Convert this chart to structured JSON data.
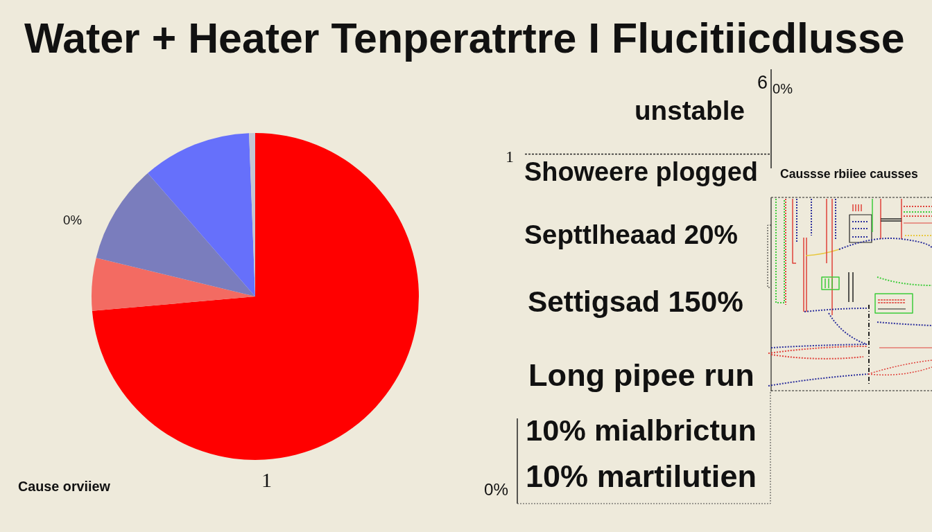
{
  "chart_data": {
    "type": "pie",
    "title": "Water + Heater Tenperatrtre I Flucitiicdlusse",
    "categories": [
      null,
      null,
      null,
      null,
      null
    ],
    "values": [
      73.6,
      5.2,
      9.8,
      10.8,
      0.6
    ],
    "colors": [
      "#ff0000",
      "#f36b62",
      "#7a7dbd",
      "#6670fb",
      "#c4c6d2"
    ],
    "annotations": [
      "6",
      "0%",
      "unstable",
      "1",
      "Showeere plogged",
      "Caussse rbiiee causses",
      "0%",
      "Septtlheaad 20%",
      "Settigsad 150%",
      "Long pipee run",
      "10% mialbrictun",
      "1",
      "10% martilutien",
      "Cause orviiew",
      "0%"
    ]
  }
}
